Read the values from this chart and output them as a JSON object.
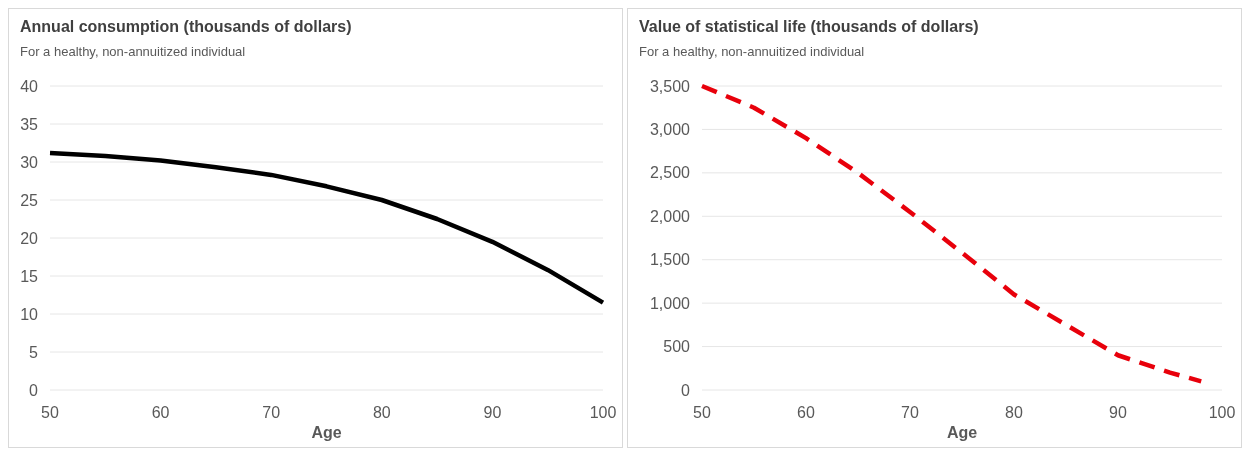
{
  "chart_data": [
    {
      "type": "line",
      "title": "Annual consumption (thousands of dollars)",
      "subtitle": "For a healthy, non-annuitized individual",
      "xlabel": "Age",
      "x": [
        50,
        55,
        60,
        65,
        70,
        75,
        80,
        85,
        90,
        95,
        100
      ],
      "series": [
        {
          "color": "#000000",
          "values": [
            31.2,
            30.8,
            30.2,
            29.3,
            28.3,
            26.8,
            25.0,
            22.5,
            19.5,
            15.8,
            11.5
          ]
        }
      ],
      "xlim": [
        50,
        100
      ],
      "xticks": [
        50,
        60,
        70,
        80,
        90,
        100
      ],
      "ylim": [
        0,
        40
      ],
      "yticks": [
        0,
        5,
        10,
        15,
        20,
        25,
        30,
        35,
        40
      ],
      "grid": "y",
      "line_style": "solid"
    },
    {
      "type": "line",
      "title": "Value of statistical life (thousands of dollars)",
      "subtitle": "For a healthy, non-annuitized individual",
      "xlabel": "Age",
      "x": [
        50,
        55,
        60,
        65,
        70,
        75,
        80,
        85,
        90,
        95,
        98
      ],
      "series": [
        {
          "color": "#e8000b",
          "values": [
            3500,
            3250,
            2900,
            2500,
            2050,
            1580,
            1100,
            750,
            400,
            200,
            100
          ]
        }
      ],
      "xlim": [
        50,
        100
      ],
      "xticks": [
        50,
        60,
        70,
        80,
        90,
        100
      ],
      "ylim": [
        0,
        3500
      ],
      "yticks": [
        0,
        {
          "value": 500,
          "label": "500"
        },
        {
          "value": 1000,
          "label": "1,000"
        },
        {
          "value": 1500,
          "label": "1,500"
        },
        {
          "value": 2000,
          "label": "2,000"
        },
        {
          "value": 2500,
          "label": "2,500"
        },
        {
          "value": 3000,
          "label": "3,000"
        },
        {
          "value": 3500,
          "label": "3,500"
        }
      ],
      "grid": "y",
      "line_style": "dashed"
    }
  ]
}
